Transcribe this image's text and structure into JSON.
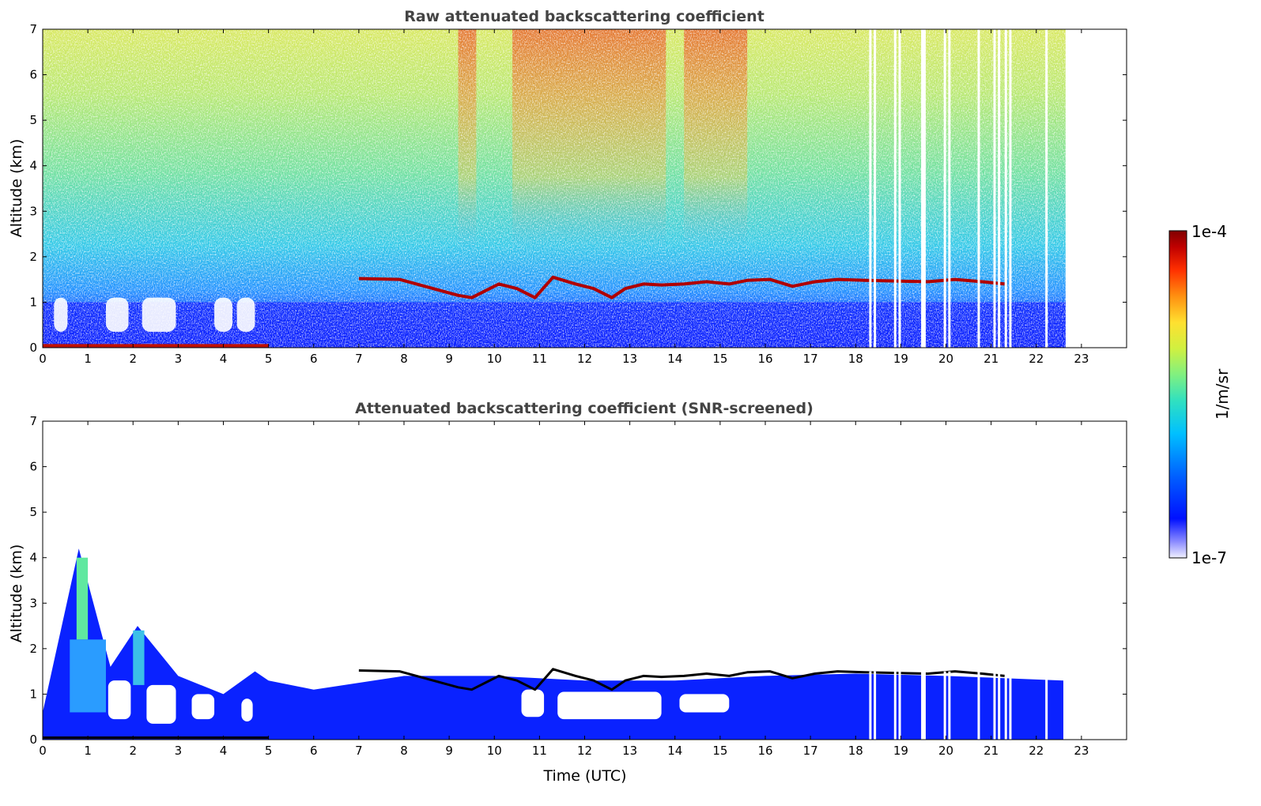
{
  "chart_data": [
    {
      "type": "heatmap",
      "title": "Raw attenuated backscattering coefficient",
      "xlabel": "",
      "ylabel": "Altitude (km)",
      "xlim": [
        0,
        24
      ],
      "ylim": [
        0,
        7
      ],
      "x_ticks": [
        "0",
        "1",
        "2",
        "3",
        "4",
        "5",
        "6",
        "7",
        "8",
        "9",
        "10",
        "11",
        "12",
        "13",
        "14",
        "15",
        "16",
        "17",
        "18",
        "19",
        "20",
        "21",
        "22",
        "23"
      ],
      "y_ticks": [
        "0",
        "1",
        "2",
        "3",
        "4",
        "5",
        "6",
        "7"
      ],
      "data_end_time": 22.65,
      "cloud_layer": [
        {
          "t": 7.0,
          "h": 1.52
        },
        {
          "t": 7.9,
          "h": 1.5
        },
        {
          "t": 9.2,
          "h": 1.15
        },
        {
          "t": 9.5,
          "h": 1.1
        },
        {
          "t": 10.1,
          "h": 1.4
        },
        {
          "t": 10.5,
          "h": 1.3
        },
        {
          "t": 10.9,
          "h": 1.1
        },
        {
          "t": 11.3,
          "h": 1.55
        },
        {
          "t": 11.8,
          "h": 1.4
        },
        {
          "t": 12.2,
          "h": 1.3
        },
        {
          "t": 12.6,
          "h": 1.1
        },
        {
          "t": 12.9,
          "h": 1.3
        },
        {
          "t": 13.3,
          "h": 1.4
        },
        {
          "t": 13.7,
          "h": 1.38
        },
        {
          "t": 14.2,
          "h": 1.4
        },
        {
          "t": 14.7,
          "h": 1.45
        },
        {
          "t": 15.2,
          "h": 1.4
        },
        {
          "t": 15.6,
          "h": 1.48
        },
        {
          "t": 16.1,
          "h": 1.5
        },
        {
          "t": 16.6,
          "h": 1.35
        },
        {
          "t": 17.1,
          "h": 1.45
        },
        {
          "t": 17.6,
          "h": 1.5
        },
        {
          "t": 18.2,
          "h": 1.48
        },
        {
          "t": 19.6,
          "h": 1.45
        },
        {
          "t": 20.2,
          "h": 1.5
        },
        {
          "t": 20.8,
          "h": 1.45
        },
        {
          "t": 21.3,
          "h": 1.4
        }
      ],
      "data_gaps": [
        18.3,
        18.4,
        18.85,
        18.95,
        19.45,
        19.5,
        19.95,
        20.05,
        20.7,
        21.05,
        21.15,
        21.3,
        21.4,
        22.2
      ]
    },
    {
      "type": "heatmap",
      "title": "Attenuated backscattering coefficient (SNR-screened)",
      "xlabel": "Time (UTC)",
      "ylabel": "Altitude (km)",
      "xlim": [
        0,
        24
      ],
      "ylim": [
        0,
        7
      ],
      "x_ticks": [
        "0",
        "1",
        "2",
        "3",
        "4",
        "5",
        "6",
        "7",
        "8",
        "9",
        "10",
        "11",
        "12",
        "13",
        "14",
        "15",
        "16",
        "17",
        "18",
        "19",
        "20",
        "21",
        "22",
        "23"
      ],
      "y_ticks": [
        "0",
        "1",
        "2",
        "3",
        "4",
        "5",
        "6",
        "7"
      ],
      "data_end_time": 22.65,
      "boundary_layer_top": [
        {
          "t": 0,
          "h": 0.6
        },
        {
          "t": 0.8,
          "h": 4.2
        },
        {
          "t": 1.5,
          "h": 1.6
        },
        {
          "t": 2.1,
          "h": 2.5
        },
        {
          "t": 3.0,
          "h": 1.4
        },
        {
          "t": 4.0,
          "h": 1.0
        },
        {
          "t": 4.7,
          "h": 1.5
        },
        {
          "t": 5.0,
          "h": 1.3
        },
        {
          "t": 6.0,
          "h": 1.1
        },
        {
          "t": 8.0,
          "h": 1.4
        },
        {
          "t": 10.0,
          "h": 1.4
        },
        {
          "t": 12.0,
          "h": 1.3
        },
        {
          "t": 14.0,
          "h": 1.3
        },
        {
          "t": 16.0,
          "h": 1.4
        },
        {
          "t": 18.0,
          "h": 1.45
        },
        {
          "t": 20.0,
          "h": 1.4
        },
        {
          "t": 22.6,
          "h": 1.3
        }
      ]
    }
  ],
  "colorbar": {
    "label": "1/m/sr",
    "max_label": "1e-4",
    "min_label": "1e-7",
    "scale": "log",
    "colormap": [
      "#f0f0ff",
      "#8a8aff",
      "#0010ff",
      "#0060ff",
      "#00c0ff",
      "#30e0c0",
      "#80f080",
      "#d0f040",
      "#ffe030",
      "#ff9010",
      "#ff3000",
      "#c00000",
      "#800000"
    ]
  }
}
